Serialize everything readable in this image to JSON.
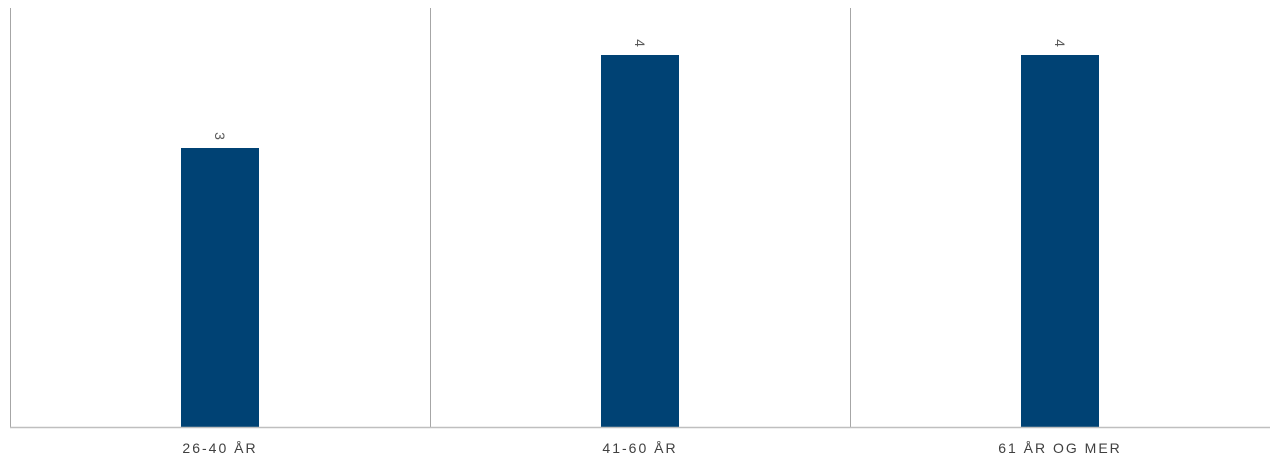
{
  "chart_data": {
    "type": "bar",
    "categories": [
      "26-40 ÅR",
      "41-60 ÅR",
      "61 ÅR OG MER"
    ],
    "values": [
      3,
      4,
      4
    ],
    "data_labels": [
      "3",
      "4",
      "4"
    ],
    "title": "",
    "xlabel": "",
    "ylabel": "",
    "ylim": [
      0,
      4.5
    ],
    "grid": false,
    "category_separators": true,
    "data_label_orientation": "rotated",
    "colors": {
      "bar": "#004274",
      "axis": "#bfbfbf",
      "separator": "#a6a6a6",
      "category_text": "#404040",
      "data_label_text": "#595959"
    }
  }
}
